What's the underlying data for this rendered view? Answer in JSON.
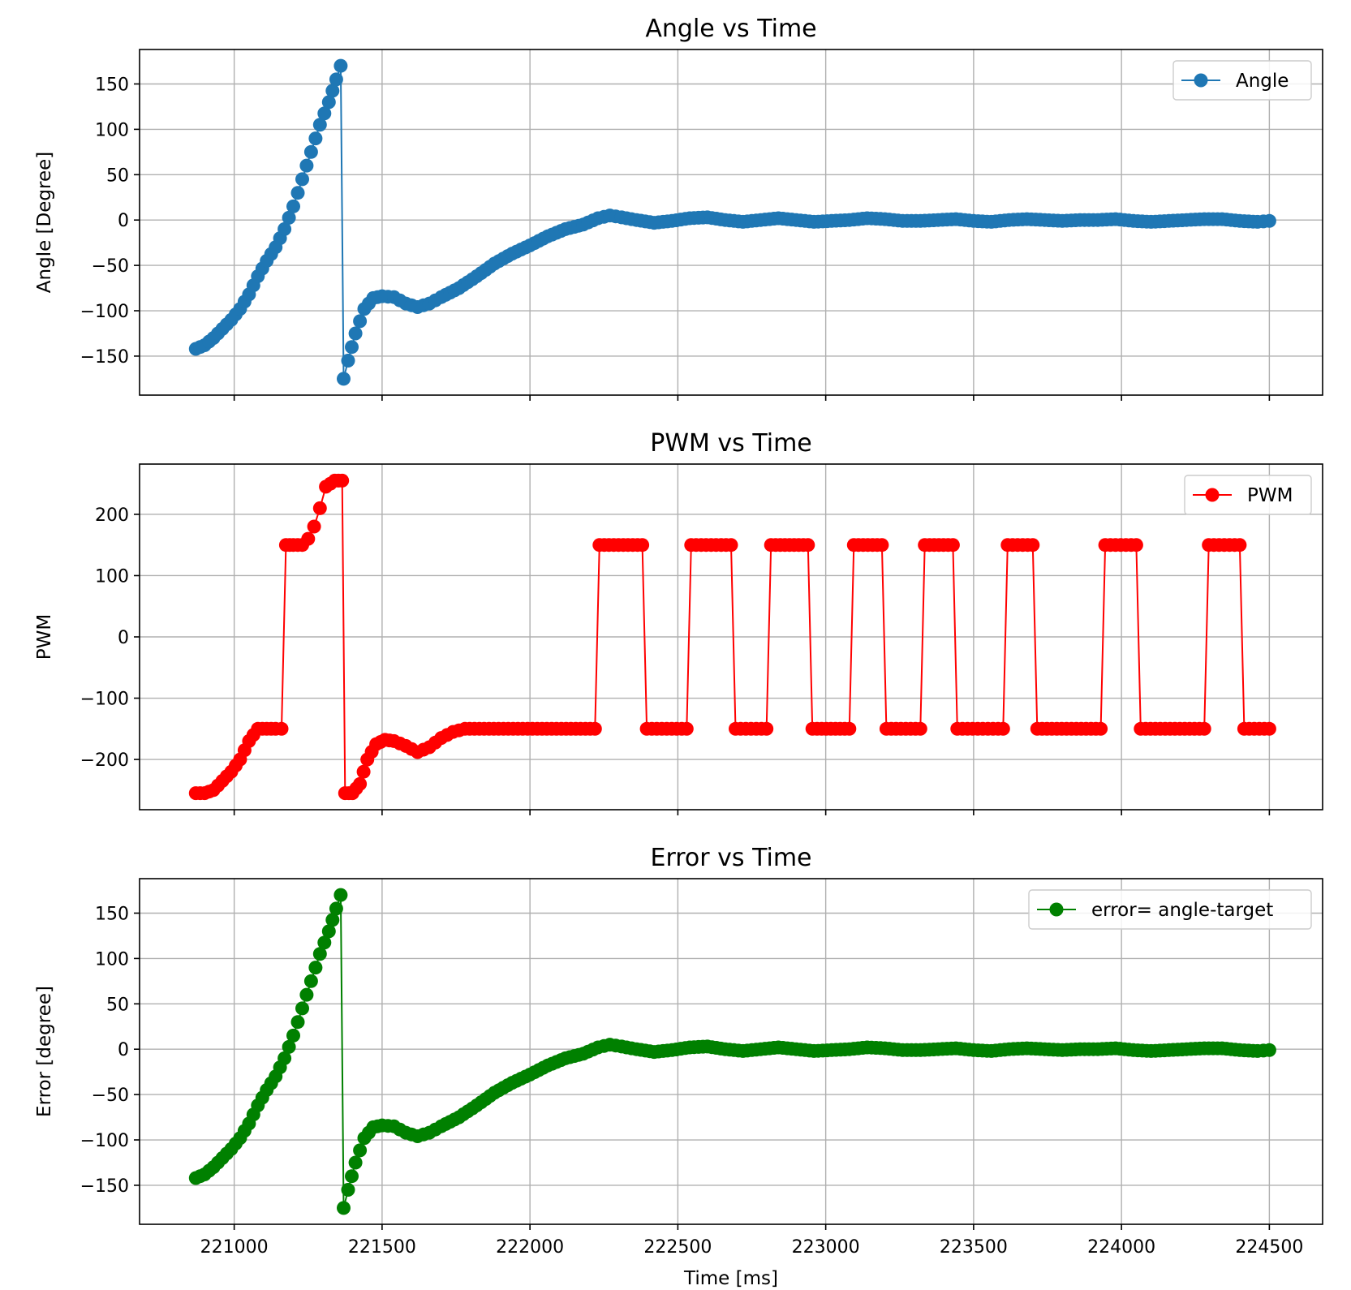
{
  "chart_data": [
    {
      "type": "line",
      "title": "Angle vs Time",
      "xlabel": "",
      "ylabel": "Angle [Degree]",
      "xlim": [
        220680,
        224680
      ],
      "ylim": [
        -193,
        188
      ],
      "x_ticks": [
        221000,
        221500,
        222000,
        222500,
        223000,
        223500,
        224000,
        224500
      ],
      "x_tick_labels_visible": false,
      "y_ticks": [
        -150,
        -100,
        -50,
        0,
        50,
        100,
        150
      ],
      "y_tick_labels": [
        "−150",
        "−100",
        "−50",
        "0",
        "50",
        "100",
        "150"
      ],
      "grid": true,
      "legend_position": "top-right",
      "series": [
        {
          "name": "Angle",
          "color": "#1f77b4",
          "marker": "circle",
          "points": [
            [
              220870,
              -142
            ],
            [
              220900,
              -138
            ],
            [
              220930,
              -130
            ],
            [
              220960,
              -120
            ],
            [
              220990,
              -110
            ],
            [
              221020,
              -98
            ],
            [
              221050,
              -82
            ],
            [
              221080,
              -62
            ],
            [
              221110,
              -45
            ],
            [
              221140,
              -30
            ],
            [
              221170,
              -10
            ],
            [
              221200,
              15
            ],
            [
              221230,
              45
            ],
            [
              221260,
              75
            ],
            [
              221290,
              105
            ],
            [
              221320,
              130
            ],
            [
              221345,
              155
            ],
            [
              221360,
              170
            ],
            [
              221370,
              -175
            ],
            [
              221385,
              -155
            ],
            [
              221410,
              -125
            ],
            [
              221440,
              -98
            ],
            [
              221470,
              -86
            ],
            [
              221500,
              -84
            ],
            [
              221540,
              -85
            ],
            [
              221580,
              -92
            ],
            [
              221620,
              -96
            ],
            [
              221660,
              -92
            ],
            [
              221700,
              -85
            ],
            [
              221760,
              -75
            ],
            [
              221820,
              -62
            ],
            [
              221880,
              -48
            ],
            [
              221940,
              -37
            ],
            [
              222000,
              -28
            ],
            [
              222060,
              -18
            ],
            [
              222120,
              -10
            ],
            [
              222180,
              -5
            ],
            [
              222230,
              2
            ],
            [
              222270,
              5
            ],
            [
              222310,
              3
            ],
            [
              222360,
              0
            ],
            [
              222420,
              -3
            ],
            [
              222480,
              -1
            ],
            [
              222540,
              2
            ],
            [
              222600,
              3
            ],
            [
              222660,
              0
            ],
            [
              222720,
              -2
            ],
            [
              222780,
              0
            ],
            [
              222840,
              2
            ],
            [
              222900,
              0
            ],
            [
              222960,
              -2
            ],
            [
              223020,
              -1
            ],
            [
              223080,
              0
            ],
            [
              223140,
              2
            ],
            [
              223200,
              1
            ],
            [
              223260,
              -1
            ],
            [
              223320,
              -1
            ],
            [
              223380,
              0
            ],
            [
              223440,
              1
            ],
            [
              223500,
              -1
            ],
            [
              223560,
              -2
            ],
            [
              223620,
              0
            ],
            [
              223680,
              1
            ],
            [
              223740,
              0
            ],
            [
              223800,
              -1
            ],
            [
              223860,
              0
            ],
            [
              223920,
              0
            ],
            [
              223980,
              1
            ],
            [
              224040,
              -1
            ],
            [
              224100,
              -2
            ],
            [
              224160,
              -1
            ],
            [
              224220,
              0
            ],
            [
              224280,
              1
            ],
            [
              224340,
              1
            ],
            [
              224400,
              -1
            ],
            [
              224460,
              -2
            ],
            [
              224500,
              -1
            ]
          ]
        }
      ]
    },
    {
      "type": "line",
      "title": "PWM vs Time",
      "xlabel": "",
      "ylabel": "PWM",
      "xlim": [
        220680,
        224680
      ],
      "ylim": [
        -282,
        282
      ],
      "x_ticks": [
        221000,
        221500,
        222000,
        222500,
        223000,
        223500,
        224000,
        224500
      ],
      "x_tick_labels_visible": false,
      "y_ticks": [
        -200,
        -100,
        0,
        100,
        200
      ],
      "y_tick_labels": [
        "−200",
        "−100",
        "0",
        "100",
        "200"
      ],
      "grid": true,
      "legend_position": "top-right",
      "series": [
        {
          "name": "PWM",
          "color": "#ff0000",
          "marker": "circle",
          "points": [
            [
              220870,
              -255
            ],
            [
              220900,
              -255
            ],
            [
              220930,
              -250
            ],
            [
              220960,
              -235
            ],
            [
              220990,
              -220
            ],
            [
              221020,
              -200
            ],
            [
              221050,
              -170
            ],
            [
              221080,
              -150
            ],
            [
              221110,
              -150
            ],
            [
              221140,
              -150
            ],
            [
              221160,
              -150
            ],
            [
              221175,
              150
            ],
            [
              221200,
              150
            ],
            [
              221230,
              150
            ],
            [
              221250,
              160
            ],
            [
              221270,
              180
            ],
            [
              221290,
              210
            ],
            [
              221310,
              245
            ],
            [
              221340,
              255
            ],
            [
              221365,
              255
            ],
            [
              221375,
              -255
            ],
            [
              221400,
              -255
            ],
            [
              221425,
              -240
            ],
            [
              221450,
              -200
            ],
            [
              221480,
              -175
            ],
            [
              221510,
              -168
            ],
            [
              221540,
              -170
            ],
            [
              221580,
              -178
            ],
            [
              221620,
              -188
            ],
            [
              221660,
              -180
            ],
            [
              221700,
              -165
            ],
            [
              221740,
              -155
            ],
            [
              221780,
              -150
            ],
            [
              222220,
              -150
            ],
            [
              222235,
              150
            ],
            [
              222380,
              150
            ],
            [
              222395,
              -150
            ],
            [
              222530,
              -150
            ],
            [
              222545,
              150
            ],
            [
              222680,
              150
            ],
            [
              222695,
              -150
            ],
            [
              222800,
              -150
            ],
            [
              222815,
              150
            ],
            [
              222940,
              150
            ],
            [
              222955,
              -150
            ],
            [
              223080,
              -150
            ],
            [
              223095,
              150
            ],
            [
              223190,
              150
            ],
            [
              223205,
              -150
            ],
            [
              223320,
              -150
            ],
            [
              223335,
              150
            ],
            [
              223430,
              150
            ],
            [
              223445,
              -150
            ],
            [
              223600,
              -150
            ],
            [
              223615,
              150
            ],
            [
              223700,
              150
            ],
            [
              223715,
              -150
            ],
            [
              223930,
              -150
            ],
            [
              223945,
              150
            ],
            [
              224050,
              150
            ],
            [
              224065,
              -150
            ],
            [
              224280,
              -150
            ],
            [
              224295,
              150
            ],
            [
              224400,
              150
            ],
            [
              224415,
              -150
            ],
            [
              224500,
              -150
            ]
          ]
        }
      ]
    },
    {
      "type": "line",
      "title": "Error vs Time",
      "xlabel": "Time [ms]",
      "ylabel": "Error [degree]",
      "xlim": [
        220680,
        224680
      ],
      "ylim": [
        -193,
        188
      ],
      "x_ticks": [
        221000,
        221500,
        222000,
        222500,
        223000,
        223500,
        224000,
        224500
      ],
      "x_tick_labels": [
        "221000",
        "221500",
        "222000",
        "222500",
        "223000",
        "223500",
        "224000",
        "224500"
      ],
      "x_tick_labels_visible": true,
      "y_ticks": [
        -150,
        -100,
        -50,
        0,
        50,
        100,
        150
      ],
      "y_tick_labels": [
        "−150",
        "−100",
        "−50",
        "0",
        "50",
        "100",
        "150"
      ],
      "grid": true,
      "legend_position": "top-right",
      "series": [
        {
          "name": "error= angle-target",
          "color": "#008000",
          "marker": "circle",
          "points": [
            [
              220870,
              -142
            ],
            [
              220900,
              -138
            ],
            [
              220930,
              -130
            ],
            [
              220960,
              -120
            ],
            [
              220990,
              -110
            ],
            [
              221020,
              -98
            ],
            [
              221050,
              -82
            ],
            [
              221080,
              -62
            ],
            [
              221110,
              -45
            ],
            [
              221140,
              -30
            ],
            [
              221170,
              -10
            ],
            [
              221200,
              15
            ],
            [
              221230,
              45
            ],
            [
              221260,
              75
            ],
            [
              221290,
              105
            ],
            [
              221320,
              130
            ],
            [
              221345,
              155
            ],
            [
              221360,
              170
            ],
            [
              221370,
              -175
            ],
            [
              221385,
              -155
            ],
            [
              221410,
              -125
            ],
            [
              221440,
              -98
            ],
            [
              221470,
              -86
            ],
            [
              221500,
              -84
            ],
            [
              221540,
              -85
            ],
            [
              221580,
              -92
            ],
            [
              221620,
              -96
            ],
            [
              221660,
              -92
            ],
            [
              221700,
              -85
            ],
            [
              221760,
              -75
            ],
            [
              221820,
              -62
            ],
            [
              221880,
              -48
            ],
            [
              221940,
              -37
            ],
            [
              222000,
              -28
            ],
            [
              222060,
              -18
            ],
            [
              222120,
              -10
            ],
            [
              222180,
              -5
            ],
            [
              222230,
              2
            ],
            [
              222270,
              5
            ],
            [
              222310,
              3
            ],
            [
              222360,
              0
            ],
            [
              222420,
              -3
            ],
            [
              222480,
              -1
            ],
            [
              222540,
              2
            ],
            [
              222600,
              3
            ],
            [
              222660,
              0
            ],
            [
              222720,
              -2
            ],
            [
              222780,
              0
            ],
            [
              222840,
              2
            ],
            [
              222900,
              0
            ],
            [
              222960,
              -2
            ],
            [
              223020,
              -1
            ],
            [
              223080,
              0
            ],
            [
              223140,
              2
            ],
            [
              223200,
              1
            ],
            [
              223260,
              -1
            ],
            [
              223320,
              -1
            ],
            [
              223380,
              0
            ],
            [
              223440,
              1
            ],
            [
              223500,
              -1
            ],
            [
              223560,
              -2
            ],
            [
              223620,
              0
            ],
            [
              223680,
              1
            ],
            [
              223740,
              0
            ],
            [
              223800,
              -1
            ],
            [
              223860,
              0
            ],
            [
              223920,
              0
            ],
            [
              223980,
              1
            ],
            [
              224040,
              -1
            ],
            [
              224100,
              -2
            ],
            [
              224160,
              -1
            ],
            [
              224220,
              0
            ],
            [
              224280,
              1
            ],
            [
              224340,
              1
            ],
            [
              224400,
              -1
            ],
            [
              224460,
              -2
            ],
            [
              224500,
              -1
            ]
          ]
        }
      ]
    }
  ]
}
